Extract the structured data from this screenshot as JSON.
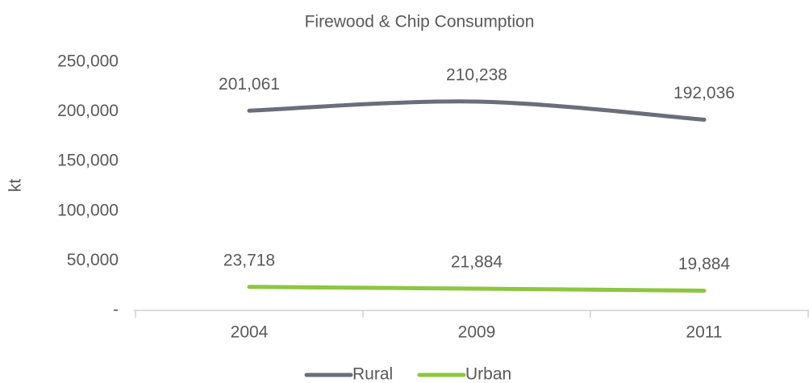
{
  "chart_data": {
    "type": "line",
    "title": "Firewood & Chip Consumption",
    "y_label": "kt",
    "categories": [
      "2004",
      "2009",
      "2011"
    ],
    "series": [
      {
        "name": "Rural",
        "color": "#6b6e7a",
        "values": [
          201061,
          210238,
          192036
        ],
        "value_labels": [
          "201,061",
          "210,238",
          "192,036"
        ]
      },
      {
        "name": "Urban",
        "color": "#8dc63f",
        "values": [
          23718,
          21884,
          19884
        ],
        "value_labels": [
          "23,718",
          "21,884",
          "19,884"
        ]
      }
    ],
    "ylim": [
      0,
      250000
    ],
    "yticks": [
      {
        "value": 0,
        "label": "-"
      },
      {
        "value": 50000,
        "label": "50,000"
      },
      {
        "value": 100000,
        "label": "100,000"
      },
      {
        "value": 150000,
        "label": "150,000"
      },
      {
        "value": 200000,
        "label": "200,000"
      },
      {
        "value": 250000,
        "label": "250,000"
      }
    ],
    "legend": "bottom",
    "grid": false
  }
}
